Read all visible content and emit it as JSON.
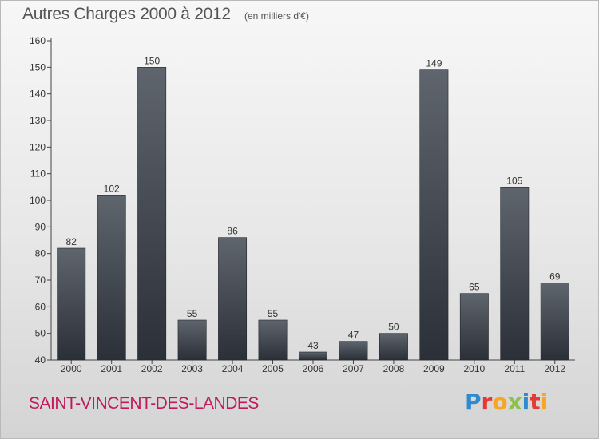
{
  "header": {
    "title": "Autres Charges 2000 à 2012",
    "subtitle": "(en milliers d'€)"
  },
  "footer": {
    "city": "SAINT-VINCENT-DES-LANDES",
    "logo": "Proxiti"
  },
  "colors": {
    "bar_top": "#5f656d",
    "bar_bottom": "#2b3038",
    "city": "#c2185b",
    "logo_letters": [
      "#2e8bd0",
      "#e53935",
      "#f6a623",
      "#8bc34a",
      "#2e8bd0",
      "#e53935",
      "#f6a623"
    ]
  },
  "chart_data": {
    "type": "bar",
    "title": "Autres Charges 2000 à 2012",
    "subtitle": "(en milliers d'€)",
    "categories": [
      "2000",
      "2001",
      "2002",
      "2003",
      "2004",
      "2005",
      "2006",
      "2007",
      "2008",
      "2009",
      "2010",
      "2011",
      "2012"
    ],
    "values": [
      82,
      102,
      150,
      55,
      86,
      55,
      43,
      47,
      50,
      149,
      65,
      105,
      69
    ],
    "ylim": [
      40,
      160
    ],
    "yticks": [
      40,
      50,
      60,
      70,
      80,
      90,
      100,
      110,
      120,
      130,
      140,
      150,
      160
    ],
    "xlabel": "",
    "ylabel": "",
    "grid": false,
    "legend": "none"
  }
}
